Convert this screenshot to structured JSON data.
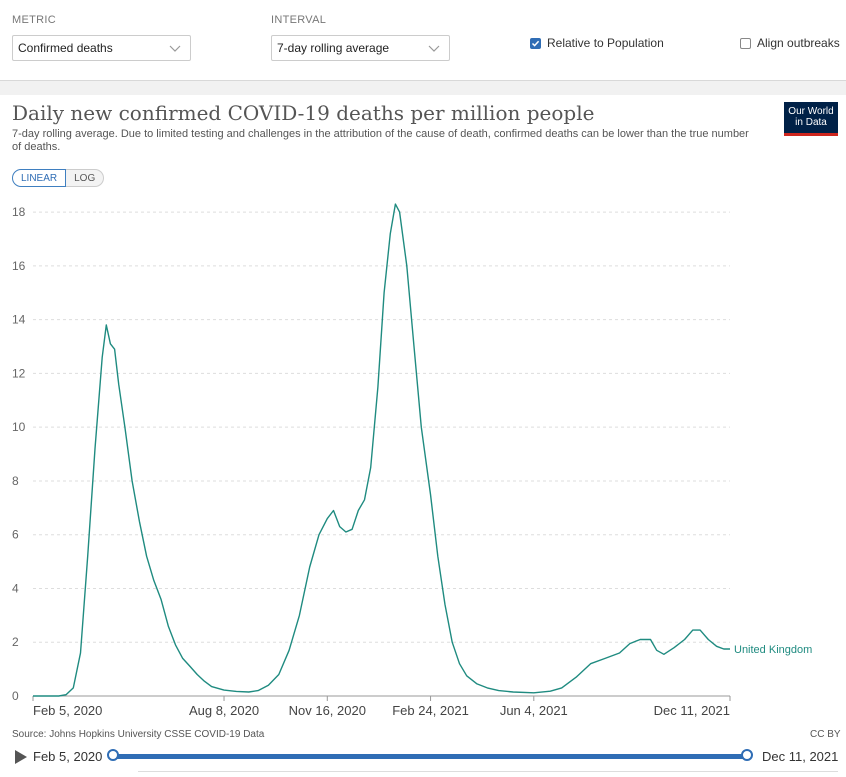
{
  "controls": {
    "metric_label": "METRIC",
    "metric_value": "Confirmed deaths",
    "interval_label": "INTERVAL",
    "interval_value": "7-day rolling average",
    "relative_label": "Relative to Population",
    "relative_checked": true,
    "align_label": "Align outbreaks",
    "align_checked": false
  },
  "header": {
    "title": "Daily new confirmed COVID-19 deaths per million people",
    "subtitle": "7-day rolling average. Due to limited testing and challenges in the attribution of the cause of death, confirmed deaths can be lower than the true number of deaths.",
    "logo_line1": "Our World",
    "logo_line2": "in Data"
  },
  "scale_toggle": {
    "linear": "LINEAR",
    "log": "LOG",
    "selected": "LINEAR"
  },
  "footer": {
    "source": "Source: Johns Hopkins University CSSE COVID-19 Data",
    "license": "CC BY"
  },
  "timeline": {
    "start": "Feb 5, 2020",
    "end": "Dec 11, 2021"
  },
  "colors": {
    "line": "#1f8b80",
    "accent": "#2f6db5",
    "logo_bg": "#002147",
    "logo_stripe": "#ce261e"
  },
  "chart_data": {
    "type": "line",
    "title": "Daily new confirmed COVID-19 deaths per million people",
    "xlabel": "",
    "ylabel": "",
    "x_ticks": [
      "Feb 5, 2020",
      "Aug 8, 2020",
      "Nov 16, 2020",
      "Feb 24, 2021",
      "Jun 4, 2021",
      "Dec 11, 2021"
    ],
    "y_ticks": [
      0,
      2,
      4,
      6,
      8,
      10,
      12,
      14,
      16,
      18
    ],
    "ylim": [
      0,
      18.6
    ],
    "xlim": [
      "2020-02-05",
      "2021-12-11"
    ],
    "grid": true,
    "series": [
      {
        "name": "United Kingdom",
        "points": [
          [
            "2020-02-05",
            0
          ],
          [
            "2020-03-01",
            0
          ],
          [
            "2020-03-08",
            0.05
          ],
          [
            "2020-03-15",
            0.3
          ],
          [
            "2020-03-22",
            1.6
          ],
          [
            "2020-03-29",
            5.2
          ],
          [
            "2020-04-05",
            9.2
          ],
          [
            "2020-04-12",
            12.6
          ],
          [
            "2020-04-16",
            13.8
          ],
          [
            "2020-04-20",
            13.1
          ],
          [
            "2020-04-24",
            12.9
          ],
          [
            "2020-04-28",
            11.6
          ],
          [
            "2020-05-04",
            10.0
          ],
          [
            "2020-05-11",
            8.0
          ],
          [
            "2020-05-18",
            6.5
          ],
          [
            "2020-05-25",
            5.2
          ],
          [
            "2020-06-01",
            4.3
          ],
          [
            "2020-06-08",
            3.6
          ],
          [
            "2020-06-15",
            2.6
          ],
          [
            "2020-06-22",
            1.9
          ],
          [
            "2020-06-29",
            1.4
          ],
          [
            "2020-07-06",
            1.1
          ],
          [
            "2020-07-13",
            0.8
          ],
          [
            "2020-07-20",
            0.55
          ],
          [
            "2020-07-27",
            0.35
          ],
          [
            "2020-08-08",
            0.22
          ],
          [
            "2020-08-20",
            0.17
          ],
          [
            "2020-09-01",
            0.15
          ],
          [
            "2020-09-10",
            0.2
          ],
          [
            "2020-09-20",
            0.4
          ],
          [
            "2020-09-30",
            0.8
          ],
          [
            "2020-10-10",
            1.7
          ],
          [
            "2020-10-20",
            3.0
          ],
          [
            "2020-10-30",
            4.8
          ],
          [
            "2020-11-08",
            6.0
          ],
          [
            "2020-11-16",
            6.6
          ],
          [
            "2020-11-22",
            6.9
          ],
          [
            "2020-11-28",
            6.3
          ],
          [
            "2020-12-04",
            6.1
          ],
          [
            "2020-12-10",
            6.2
          ],
          [
            "2020-12-16",
            6.9
          ],
          [
            "2020-12-22",
            7.3
          ],
          [
            "2020-12-28",
            8.5
          ],
          [
            "2021-01-04",
            11.5
          ],
          [
            "2021-01-10",
            15.0
          ],
          [
            "2021-01-16",
            17.2
          ],
          [
            "2021-01-21",
            18.3
          ],
          [
            "2021-01-25",
            18.0
          ],
          [
            "2021-02-01",
            16.0
          ],
          [
            "2021-02-08",
            13.0
          ],
          [
            "2021-02-15",
            10.0
          ],
          [
            "2021-02-24",
            7.5
          ],
          [
            "2021-03-03",
            5.2
          ],
          [
            "2021-03-10",
            3.4
          ],
          [
            "2021-03-17",
            2.0
          ],
          [
            "2021-03-24",
            1.2
          ],
          [
            "2021-03-31",
            0.75
          ],
          [
            "2021-04-10",
            0.45
          ],
          [
            "2021-04-20",
            0.3
          ],
          [
            "2021-05-01",
            0.2
          ],
          [
            "2021-05-15",
            0.15
          ],
          [
            "2021-06-04",
            0.12
          ],
          [
            "2021-06-20",
            0.18
          ],
          [
            "2021-07-01",
            0.3
          ],
          [
            "2021-07-15",
            0.7
          ],
          [
            "2021-07-29",
            1.2
          ],
          [
            "2021-08-12",
            1.4
          ],
          [
            "2021-08-26",
            1.6
          ],
          [
            "2021-09-05",
            1.95
          ],
          [
            "2021-09-15",
            2.1
          ],
          [
            "2021-09-25",
            2.1
          ],
          [
            "2021-10-01",
            1.7
          ],
          [
            "2021-10-08",
            1.55
          ],
          [
            "2021-10-18",
            1.8
          ],
          [
            "2021-10-28",
            2.1
          ],
          [
            "2021-11-05",
            2.45
          ],
          [
            "2021-11-12",
            2.45
          ],
          [
            "2021-11-20",
            2.1
          ],
          [
            "2021-11-28",
            1.85
          ],
          [
            "2021-12-05",
            1.75
          ],
          [
            "2021-12-11",
            1.75
          ]
        ]
      }
    ]
  }
}
